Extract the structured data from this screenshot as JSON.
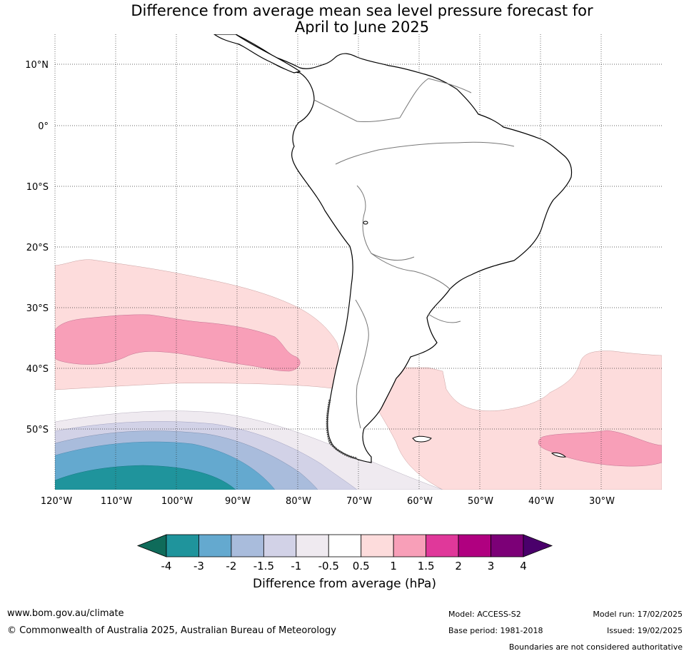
{
  "title": {
    "line1": "Difference from average mean sea level pressure forecast for",
    "line2": "April to June 2025"
  },
  "axes": {
    "lat_labels": [
      "10°N",
      "0°",
      "10°S",
      "20°S",
      "30°S",
      "40°S",
      "50°S"
    ],
    "lon_labels": [
      "120°W",
      "110°W",
      "100°W",
      "90°W",
      "80°W",
      "70°W",
      "60°W",
      "50°W",
      "40°W",
      "30°W"
    ]
  },
  "legend": {
    "label": "Difference from average (hPa)",
    "ticks": [
      "-4",
      "-3",
      "-2",
      "-1.5",
      "-1",
      "-0.5",
      "0.5",
      "1",
      "1.5",
      "2",
      "3",
      "4"
    ],
    "colors": [
      "#0f6b5a",
      "#1f949c",
      "#64a9cf",
      "#a9bcdc",
      "#d2d2e7",
      "#efeaf0",
      "#ffffff",
      "#fddcdc",
      "#f89fb8",
      "#e0389a",
      "#b00080",
      "#7c0077",
      "#4a006b"
    ]
  },
  "footer": {
    "url": "www.bom.gov.au/climate",
    "copyright": "© Commonwealth of Australia 2025, Australian Bureau of Meteorology",
    "model": "Model: ACCESS-S2",
    "base_period": "Base period: 1981-2018",
    "model_run": "Model run: 17/02/2025",
    "issued": "Issued: 19/02/2025",
    "disclaimer": "Boundaries are not considered authoritative"
  },
  "chart_data": {
    "type": "heatmap",
    "variable": "mean sea level pressure anomaly",
    "units": "hPa",
    "extent": {
      "lon": [
        -120,
        -20
      ],
      "lat": [
        -60,
        15
      ]
    },
    "regions": [
      {
        "name": "+0.5 to +1 band",
        "range": [
          0.5,
          1
        ],
        "approx_area": "subtropical South Pacific 23°S–43°S and South Atlantic 38°S–60°S"
      },
      {
        "name": "+1 to +1.5 core (Pacific)",
        "range": [
          1,
          1.5
        ],
        "approx_area": "120°W–80°W, 32°S–40°S"
      },
      {
        "name": "+1 to +1.5 core (Atlantic)",
        "range": [
          1,
          1.5
        ],
        "approx_area": "40°W–20°W, 52°S–57°S"
      },
      {
        "name": "negative anomalies",
        "range": [
          -3,
          -0.5
        ],
        "approx_area": "Southeast Pacific south of 48°S, strongest near 100°W"
      }
    ]
  }
}
